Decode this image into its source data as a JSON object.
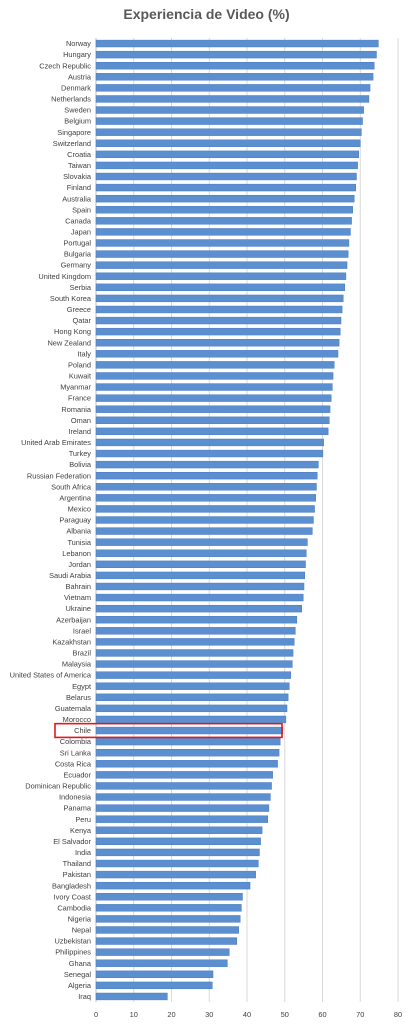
{
  "chart_data": {
    "type": "bar",
    "orientation": "horizontal",
    "title": "Experiencia de Video (%)",
    "xlabel": "",
    "ylabel": "",
    "xlim": [
      0,
      80
    ],
    "xticks": [
      0,
      10,
      20,
      30,
      40,
      50,
      60,
      70,
      80
    ],
    "grid": true,
    "bar_color": "#5b8fd0",
    "highlight": {
      "category": "Chile",
      "color": "#e0191f"
    },
    "categories": [
      "Norway",
      "Hungary",
      "Czech Republic",
      "Austria",
      "Denmark",
      "Netherlands",
      "Sweden",
      "Belgium",
      "Singapore",
      "Switzerland",
      "Croatia",
      "Taiwan",
      "Slovakia",
      "Finland",
      "Australia",
      "Spain",
      "Canada",
      "Japan",
      "Portugal",
      "Bulgaria",
      "Germany",
      "United Kingdom",
      "Serbia",
      "South Korea",
      "Greece",
      "Qatar",
      "Hong Kong",
      "New Zealand",
      "Italy",
      "Poland",
      "Kuwait",
      "Myanmar",
      "France",
      "Romania",
      "Oman",
      "Ireland",
      "United Arab Emirates",
      "Turkey",
      "Bolivia",
      "Russian Federation",
      "South Africa",
      "Argentina",
      "Mexico",
      "Paraguay",
      "Albania",
      "Tunisia",
      "Lebanon",
      "Jordan",
      "Saudi Arabia",
      "Bahrain",
      "Vietnam",
      "Ukraine",
      "Azerbaijan",
      "Israel",
      "Kazakhstan",
      "Brazil",
      "Malaysia",
      "United States of America",
      "Egypt",
      "Belarus",
      "Guatemala",
      "Morocco",
      "Chile",
      "Colombia",
      "Sri Lanka",
      "Costa Rica",
      "Ecuador",
      "Dominican Republic",
      "Indonesia",
      "Panama",
      "Peru",
      "Kenya",
      "El Salvador",
      "India",
      "Thailand",
      "Pakistan",
      "Bangladesh",
      "Ivory Coast",
      "Cambodia",
      "Nigeria",
      "Nepal",
      "Uzbekistan",
      "Philippines",
      "Ghana",
      "Senegal",
      "Algeria",
      "Iraq"
    ],
    "values": [
      74.8,
      74.3,
      73.7,
      73.4,
      72.6,
      72.3,
      70.9,
      70.6,
      70.3,
      70.0,
      69.6,
      69.3,
      69.0,
      68.8,
      68.4,
      68.0,
      67.7,
      67.4,
      67.0,
      66.8,
      66.5,
      66.2,
      65.9,
      65.5,
      65.2,
      64.9,
      64.7,
      64.4,
      64.1,
      63.1,
      62.8,
      62.6,
      62.3,
      62.0,
      61.8,
      61.5,
      60.3,
      60.1,
      58.9,
      58.6,
      58.4,
      58.2,
      57.9,
      57.6,
      57.3,
      56.0,
      55.7,
      55.5,
      55.3,
      55.1,
      54.9,
      54.5,
      53.2,
      52.8,
      52.5,
      52.2,
      52.0,
      51.6,
      51.2,
      50.9,
      50.6,
      50.3,
      49.5,
      48.8,
      48.5,
      48.1,
      46.8,
      46.5,
      46.2,
      45.8,
      45.5,
      44.0,
      43.6,
      43.3,
      43.0,
      42.3,
      40.8,
      38.8,
      38.5,
      38.2,
      37.8,
      37.3,
      35.3,
      34.8,
      31.0,
      30.8,
      18.9
    ]
  }
}
